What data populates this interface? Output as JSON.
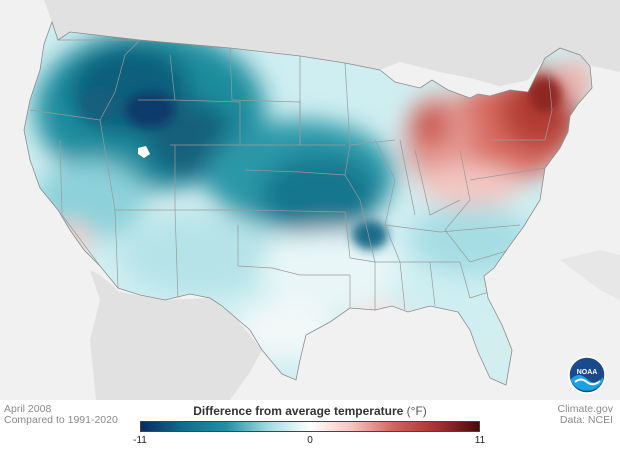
{
  "caption": {
    "date": "April 2008",
    "baseline": "Compared to 1991-2020"
  },
  "credit": {
    "site": "Climate.gov",
    "data": "Data: NCEI"
  },
  "legend": {
    "title": "Difference from average temperature",
    "unit": "(°F)",
    "min_label": "-11",
    "mid_label": "0",
    "max_label": "11",
    "min": -11,
    "max": 11,
    "colors": [
      "#0b2a63",
      "#0f6e8c",
      "#1f8fa3",
      "#9fdbe2",
      "#ffffff",
      "#f4c4c0",
      "#d2625a",
      "#a83030",
      "#4a0a0a"
    ]
  },
  "map": {
    "background_color": "#f1f1f1",
    "land_color": "#e1e1e1",
    "border_color": "#9a9a9a",
    "anomaly_pattern": "cool (blue) across the West and Plains, warm (red) in the Great Lakes and Northeast"
  },
  "logo": {
    "name": "noaa-logo",
    "text": "NOAA"
  }
}
